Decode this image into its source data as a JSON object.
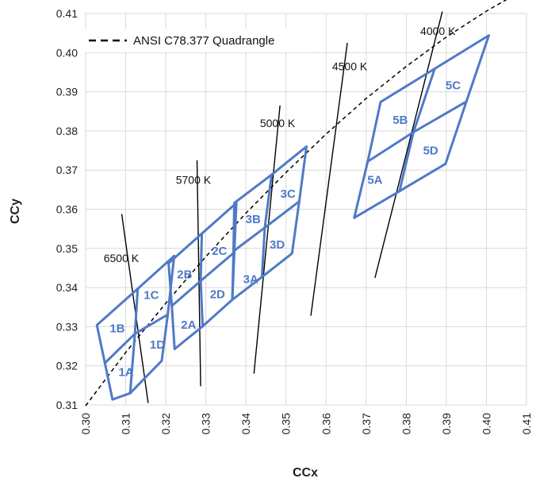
{
  "chart_data": {
    "type": "line",
    "xlabel": "CCx",
    "ylabel": "CCy",
    "xlim": [
      0.3,
      0.41
    ],
    "ylim": [
      0.31,
      0.41
    ],
    "xticks": [
      "0.30",
      "0.31",
      "0.32",
      "0.33",
      "0.34",
      "0.35",
      "0.36",
      "0.37",
      "0.38",
      "0.39",
      "0.40",
      "0.41"
    ],
    "yticks": [
      "0.31",
      "0.32",
      "0.33",
      "0.34",
      "0.35",
      "0.36",
      "0.37",
      "0.38",
      "0.39",
      "0.40",
      "0.41"
    ],
    "grid": true,
    "legend": {
      "position": "top-left",
      "entries": [
        "ANSI C78.377 Quadrangle"
      ]
    },
    "planckian_locus": {
      "style": "dashed",
      "color": "#000000",
      "points": [
        [
          0.3,
          0.3098
        ],
        [
          0.31,
          0.3234
        ],
        [
          0.32,
          0.336
        ],
        [
          0.33,
          0.3479
        ],
        [
          0.34,
          0.359
        ],
        [
          0.35,
          0.3694
        ],
        [
          0.36,
          0.3792
        ],
        [
          0.37,
          0.3883
        ],
        [
          0.38,
          0.3965
        ],
        [
          0.39,
          0.404
        ],
        [
          0.4,
          0.4106
        ],
        [
          0.41,
          0.4165
        ]
      ]
    },
    "isotherms": [
      {
        "label": "6500 K",
        "from": [
          0.309,
          0.3588
        ],
        "to": [
          0.3156,
          0.3105
        ],
        "label_at": [
          0.3045,
          0.3465
        ]
      },
      {
        "label": "5700 K",
        "from": [
          0.3278,
          0.3725
        ],
        "to": [
          0.3287,
          0.3148
        ],
        "label_at": [
          0.3225,
          0.3665
        ]
      },
      {
        "label": "5000 K",
        "from": [
          0.3485,
          0.3865
        ],
        "to": [
          0.342,
          0.318
        ],
        "label_at": [
          0.3435,
          0.381
        ]
      },
      {
        "label": "4500 K",
        "from": [
          0.3653,
          0.4025
        ],
        "to": [
          0.3562,
          0.3328
        ],
        "label_at": [
          0.3615,
          0.3955
        ]
      },
      {
        "label": "4000 K",
        "from": [
          0.389,
          0.4105
        ],
        "to": [
          0.3722,
          0.3425
        ],
        "label_at": [
          0.3835,
          0.4045
        ]
      }
    ],
    "quadrangle_color": "#4f7ac7",
    "quadrangles": [
      {
        "name": "6500 K",
        "points": [
          [
            0.3028,
            0.3304
          ],
          [
            0.313,
            0.3397
          ],
          [
            0.3221,
            0.3481
          ],
          [
            0.3205,
            0.3331
          ],
          [
            0.319,
            0.3213
          ],
          [
            0.3111,
            0.313
          ],
          [
            0.3067,
            0.3114
          ],
          [
            0.3048,
            0.3207
          ]
        ],
        "center": [
          0.3123,
          0.3282
        ]
      },
      {
        "name": "5700 K",
        "points": [
          [
            0.3207,
            0.3462
          ],
          [
            0.329,
            0.3538
          ],
          [
            0.3376,
            0.3616
          ],
          [
            0.3371,
            0.349
          ],
          [
            0.3366,
            0.3369
          ],
          [
            0.3292,
            0.3301
          ],
          [
            0.3222,
            0.3243
          ],
          [
            0.3215,
            0.3353
          ]
        ],
        "center": [
          0.3287,
          0.3417
        ]
      },
      {
        "name": "5000 K",
        "points": [
          [
            0.3371,
            0.3616
          ],
          [
            0.3464,
            0.3688
          ],
          [
            0.3551,
            0.376
          ],
          [
            0.3533,
            0.362
          ],
          [
            0.3515,
            0.3487
          ],
          [
            0.344,
            0.3427
          ],
          [
            0.3366,
            0.3369
          ],
          [
            0.3369,
            0.3493
          ]
        ],
        "center": [
          0.3447,
          0.3553
        ]
      },
      {
        "name": "4000 K",
        "points": [
          [
            0.3736,
            0.3874
          ],
          [
            0.3871,
            0.3959
          ],
          [
            0.4006,
            0.4044
          ],
          [
            0.395,
            0.3875
          ],
          [
            0.3898,
            0.3716
          ],
          [
            0.3783,
            0.3646
          ],
          [
            0.367,
            0.3578
          ],
          [
            0.3704,
            0.3722
          ]
        ],
        "center": [
          0.3818,
          0.3797
        ]
      }
    ],
    "bin_labels": [
      {
        "text": "1A",
        "at": [
          0.3101,
          0.3184
        ]
      },
      {
        "text": "1B",
        "at": [
          0.3079,
          0.3296
        ]
      },
      {
        "text": "1C",
        "at": [
          0.3164,
          0.3381
        ]
      },
      {
        "text": "1D",
        "at": [
          0.3179,
          0.3254
        ]
      },
      {
        "text": "2A",
        "at": [
          0.3257,
          0.3305
        ]
      },
      {
        "text": "2B",
        "at": [
          0.3247,
          0.3434
        ]
      },
      {
        "text": "2C",
        "at": [
          0.3334,
          0.3494
        ]
      },
      {
        "text": "2D",
        "at": [
          0.3329,
          0.3383
        ]
      },
      {
        "text": "3A",
        "at": [
          0.3412,
          0.3422
        ]
      },
      {
        "text": "3B",
        "at": [
          0.3418,
          0.3575
        ]
      },
      {
        "text": "3C",
        "at": [
          0.3505,
          0.364
        ]
      },
      {
        "text": "3D",
        "at": [
          0.3478,
          0.351
        ]
      },
      {
        "text": "5A",
        "at": [
          0.3722,
          0.3675
        ]
      },
      {
        "text": "5B",
        "at": [
          0.3785,
          0.3828
        ]
      },
      {
        "text": "5C",
        "at": [
          0.3917,
          0.3916
        ]
      },
      {
        "text": "5D",
        "at": [
          0.3861,
          0.375
        ]
      }
    ]
  }
}
